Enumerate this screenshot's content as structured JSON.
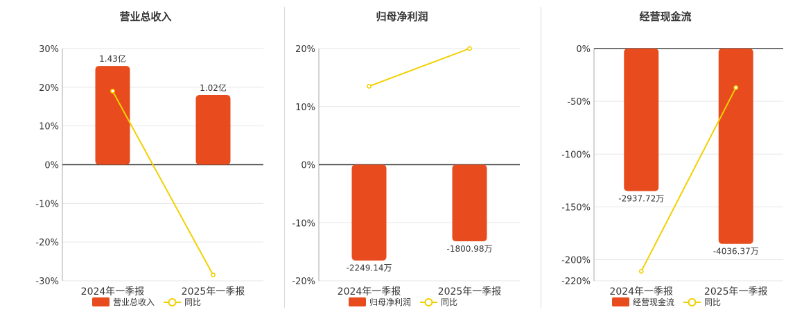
{
  "colors": {
    "bar": "#E84B1D",
    "line": "#F2D000",
    "axis": "#444444",
    "grid": "#e6e6e6",
    "text": "#333333"
  },
  "chart_data": [
    {
      "type": "bar",
      "title": "营业总收入",
      "categories": [
        "2024年一季报",
        "2025年一季报"
      ],
      "series": [
        {
          "name": "营业总收入",
          "values": [
            1.43,
            1.02
          ],
          "unit": "亿",
          "value_labels": [
            "1.43亿",
            "1.02亿"
          ]
        },
        {
          "name": "同比",
          "kind": "line",
          "values": [
            19.0,
            -28.5
          ],
          "unit": "%"
        }
      ],
      "bar_pct_values": [
        25.5,
        18.0
      ],
      "ylim": [
        -30,
        30
      ],
      "yticks": [
        30,
        20,
        10,
        0,
        -10,
        -20,
        -30
      ],
      "ytick_labels": [
        "30%",
        "20%",
        "10%",
        "0%",
        "-10%",
        "-20%",
        "-30%"
      ],
      "grid": true,
      "legend": "bottom"
    },
    {
      "type": "bar",
      "title": "归母净利润",
      "categories": [
        "2024年一季报",
        "2025年一季报"
      ],
      "series": [
        {
          "name": "归母净利润",
          "values": [
            -2249.14,
            -1800.98
          ],
          "unit": "万",
          "value_labels": [
            "-2249.14万",
            "-1800.98万"
          ]
        },
        {
          "name": "同比",
          "kind": "line",
          "values": [
            13.5,
            20.0
          ],
          "unit": "%"
        }
      ],
      "bar_pct_values": [
        -16.5,
        -13.2
      ],
      "ylim": [
        -20,
        20
      ],
      "yticks": [
        20,
        10,
        0,
        -10,
        -20
      ],
      "ytick_labels": [
        "20%",
        "10%",
        "0%",
        "-10%",
        "-20%"
      ],
      "grid": true,
      "legend": "bottom"
    },
    {
      "type": "bar",
      "title": "经营现金流",
      "categories": [
        "2024年一季报",
        "2025年一季报"
      ],
      "series": [
        {
          "name": "经营现金流",
          "values": [
            -2937.72,
            -4036.37
          ],
          "unit": "万",
          "value_labels": [
            "-2937.72万",
            "-4036.37万"
          ]
        },
        {
          "name": "同比",
          "kind": "line",
          "values": [
            -211.0,
            -37.0
          ],
          "unit": "%"
        }
      ],
      "bar_pct_values": [
        -135.0,
        -185.0
      ],
      "ylim": [
        -220,
        0
      ],
      "yticks": [
        0,
        -50,
        -100,
        -150,
        -200,
        -220
      ],
      "ytick_labels": [
        "0%",
        "-50%",
        "-100%",
        "-150%",
        "-200%",
        "-220%"
      ],
      "grid": true,
      "legend": "bottom"
    }
  ]
}
